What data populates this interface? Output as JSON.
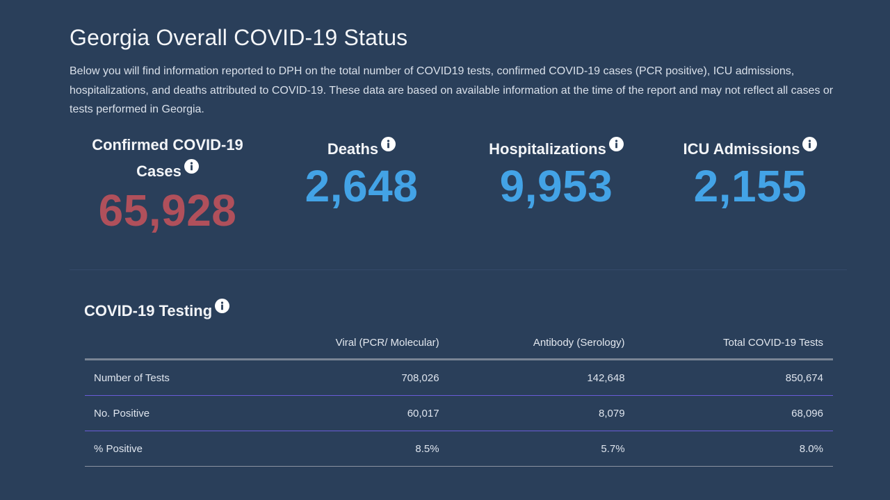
{
  "page": {
    "title": "Georgia Overall COVID-19 Status",
    "intro": "Below you will find information reported to DPH on the total number of COVID19 tests, confirmed COVID-19 cases (PCR positive), ICU admissions, hospitalizations, and deaths attributed to COVID-19. These data are based on available information at the time of the report and may not reflect all cases or tests performed in Georgia."
  },
  "stats": {
    "cases": {
      "label_line1": "Confirmed COVID-19",
      "label_line2": "Cases",
      "value": "65,928",
      "icon": "info-icon"
    },
    "deaths": {
      "label": "Deaths",
      "value": "2,648",
      "icon": "info-icon"
    },
    "hospitalizations": {
      "label": "Hospitalizations",
      "value": "9,953",
      "icon": "info-icon"
    },
    "icu": {
      "label": "ICU Admissions",
      "value": "2,155",
      "icon": "info-icon"
    }
  },
  "testing": {
    "title": "COVID-19 Testing",
    "icon": "info-icon",
    "columns": [
      "",
      "Viral (PCR/ Molecular)",
      "Antibody (Serology)",
      "Total COVID-19 Tests"
    ],
    "rows": [
      {
        "label": "Number of Tests",
        "viral": "708,026",
        "antibody": "142,648",
        "total": "850,674"
      },
      {
        "label": "No. Positive",
        "viral": "60,017",
        "antibody": "8,079",
        "total": "68,096"
      },
      {
        "label": "% Positive",
        "viral": "8.5%",
        "antibody": "5.7%",
        "total": "8.0%"
      }
    ]
  },
  "colors": {
    "background": "#2a3f5a",
    "cases_value": "#b0505b",
    "stat_value": "#43a3e6",
    "row_divider": "#6a5cd8"
  }
}
